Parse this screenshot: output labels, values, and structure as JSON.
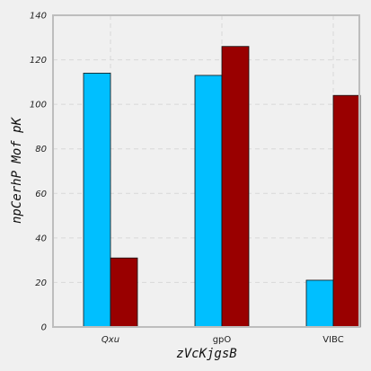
{
  "chart_data": {
    "type": "bar",
    "categories": [
      "Qxu",
      "gpO",
      "VIBC"
    ],
    "category_styles": [
      "italic",
      "normal",
      "normal"
    ],
    "series": [
      {
        "values": [
          114,
          113,
          21
        ],
        "color": "#00bfff"
      },
      {
        "values": [
          31,
          126,
          104
        ],
        "color": "#990000"
      }
    ],
    "xlabel": "zVcKjgsB",
    "ylabel": "npCerhP Mof pK",
    "ylim": [
      0,
      140
    ],
    "yticks": [
      0,
      20,
      40,
      60,
      80,
      100,
      120,
      140
    ],
    "grid": true,
    "legend": "none"
  }
}
